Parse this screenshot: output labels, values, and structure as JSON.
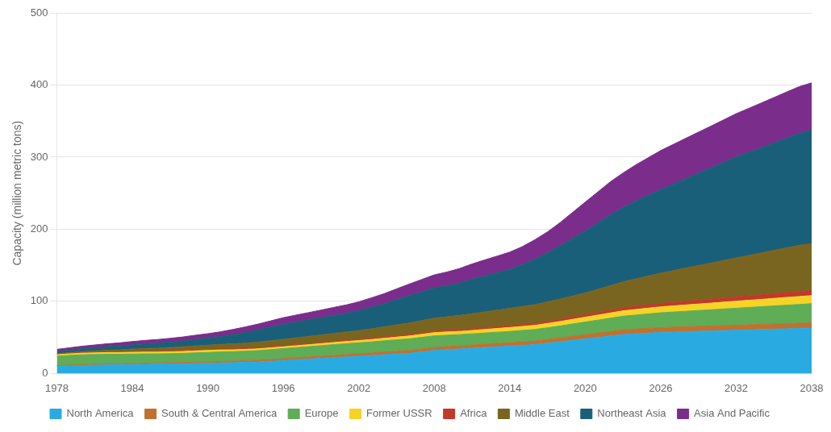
{
  "chart_data": {
    "type": "area",
    "stacked": true,
    "ylabel": "Capacity (million metric tons)",
    "x": [
      1978,
      1979,
      1980,
      1981,
      1982,
      1983,
      1984,
      1985,
      1986,
      1987,
      1988,
      1989,
      1990,
      1991,
      1992,
      1993,
      1994,
      1995,
      1996,
      1997,
      1998,
      1999,
      2000,
      2001,
      2002,
      2003,
      2004,
      2005,
      2006,
      2007,
      2008,
      2009,
      2010,
      2011,
      2012,
      2013,
      2014,
      2015,
      2016,
      2017,
      2018,
      2019,
      2020,
      2021,
      2022,
      2023,
      2024,
      2025,
      2026,
      2027,
      2028,
      2029,
      2030,
      2031,
      2032,
      2033,
      2034,
      2035,
      2036,
      2037,
      2038
    ],
    "series": [
      {
        "name": "North America",
        "color": "#29ABE2",
        "values": [
          10,
          10.5,
          11,
          11.5,
          12,
          12.2,
          12.5,
          12.8,
          13,
          13.2,
          13.5,
          13.8,
          14,
          14.5,
          15,
          15.5,
          16,
          17,
          18,
          19,
          20,
          21,
          22,
          23,
          24,
          25,
          26,
          27,
          28,
          30,
          32,
          33,
          34,
          35,
          36,
          37,
          38,
          39,
          40,
          42,
          44,
          46,
          48,
          50,
          52,
          54,
          55,
          56,
          57,
          57.5,
          58,
          58.5,
          59,
          59.5,
          60,
          60.5,
          61,
          61.5,
          62,
          62.5,
          63
        ]
      },
      {
        "name": "South & Central America",
        "color": "#C1712F",
        "values": [
          1,
          1.1,
          1.2,
          1.3,
          1.4,
          1.45,
          1.5,
          1.6,
          1.7,
          1.8,
          1.9,
          2.0,
          2.1,
          2.2,
          2.3,
          2.4,
          2.5,
          2.6,
          2.7,
          2.9,
          3.0,
          3.1,
          3.2,
          3.3,
          3.5,
          3.6,
          3.8,
          3.9,
          4.0,
          4.1,
          4.2,
          4.3,
          4.4,
          4.5,
          4.6,
          4.7,
          4.8,
          4.9,
          5.0,
          5.2,
          5.4,
          5.6,
          5.8,
          6.0,
          6.2,
          6.4,
          6.5,
          6.6,
          6.7,
          6.75,
          6.8,
          6.85,
          6.9,
          6.95,
          7.0,
          7.05,
          7.1,
          7.15,
          7.2,
          7.25,
          7.3
        ]
      },
      {
        "name": "Europe",
        "color": "#5FAD56",
        "values": [
          13,
          13.5,
          13.8,
          13.5,
          13.2,
          13.0,
          13.0,
          12.8,
          12.5,
          12.5,
          12.5,
          12.8,
          13.0,
          13.2,
          13.0,
          13.0,
          13.2,
          13.5,
          13.8,
          14.0,
          14.2,
          14.5,
          14.8,
          15.0,
          15.0,
          15.2,
          15.5,
          15.8,
          16.0,
          16.0,
          16.0,
          15.8,
          15.5,
          15.5,
          15.5,
          15.5,
          15.5,
          15.8,
          16.0,
          16.2,
          16.5,
          17.0,
          17.5,
          18.0,
          18.5,
          19.0,
          19.5,
          20.0,
          20.5,
          21.0,
          21.5,
          22.0,
          22.5,
          23.0,
          23.5,
          24.0,
          24.5,
          25.0,
          25.5,
          26.0,
          26.5
        ]
      },
      {
        "name": "Former USSR",
        "color": "#F5D327",
        "values": [
          2,
          2.1,
          2.2,
          2.3,
          2.4,
          2.4,
          2.5,
          2.5,
          2.5,
          2.6,
          2.7,
          2.8,
          3.0,
          2.8,
          2.6,
          2.5,
          2.5,
          2.5,
          2.5,
          2.6,
          2.7,
          2.8,
          3.0,
          3.1,
          3.2,
          3.3,
          3.5,
          3.8,
          4.0,
          4.2,
          4.5,
          4.5,
          4.5,
          4.6,
          5.0,
          5.2,
          5.5,
          5.6,
          5.8,
          6.0,
          6.2,
          6.5,
          6.8,
          7.0,
          7.2,
          7.5,
          7.8,
          8.0,
          8.2,
          8.5,
          8.8,
          9.0,
          9.2,
          9.5,
          9.8,
          10.0,
          10.2,
          10.5,
          10.8,
          11.0,
          11.2
        ]
      },
      {
        "name": "Africa",
        "color": "#C0392B",
        "values": [
          0.5,
          0.55,
          0.6,
          0.65,
          0.7,
          0.75,
          0.8,
          0.85,
          0.9,
          0.95,
          1.0,
          1.05,
          1.1,
          1.15,
          1.2,
          1.25,
          1.3,
          1.35,
          1.4,
          1.45,
          1.5,
          1.55,
          1.6,
          1.65,
          1.7,
          1.75,
          1.8,
          1.85,
          1.9,
          1.95,
          2.0,
          2.05,
          2.1,
          2.2,
          2.3,
          2.4,
          2.5,
          2.6,
          2.7,
          2.9,
          3.1,
          3.3,
          3.5,
          3.7,
          3.9,
          4.1,
          4.3,
          4.5,
          4.7,
          4.9,
          5.1,
          5.3,
          5.5,
          5.7,
          5.9,
          6.1,
          6.3,
          6.5,
          6.7,
          6.9,
          7.0
        ]
      },
      {
        "name": "Middle East",
        "color": "#7A6520",
        "values": [
          1,
          1.2,
          1.5,
          2.0,
          2.5,
          3.0,
          3.5,
          4.0,
          4.5,
          5.0,
          5.5,
          5.8,
          6.0,
          6.5,
          7.0,
          7.5,
          8.0,
          8.5,
          9.0,
          9.5,
          10.0,
          10.5,
          11.0,
          11.5,
          12.0,
          13.0,
          14.0,
          15.0,
          16.0,
          17.0,
          18.0,
          19.0,
          20.0,
          21.0,
          22.0,
          23.0,
          24.0,
          25.0,
          26.0,
          27.0,
          28.0,
          29.0,
          30.0,
          32.0,
          34.0,
          36.0,
          38.0,
          40.0,
          42.0,
          44.0,
          46.0,
          48.0,
          50.0,
          52.0,
          54.0,
          56.0,
          58.0,
          60.0,
          62.0,
          64.0,
          65.0
        ]
      },
      {
        "name": "Northeast Asia",
        "color": "#1A5F7A",
        "values": [
          3,
          3.5,
          4,
          4.5,
          5,
          5.5,
          6,
          6.5,
          7,
          7.5,
          8,
          9,
          10,
          11,
          13,
          15,
          17,
          19,
          21,
          22,
          23,
          24,
          25,
          26,
          28,
          30,
          32,
          35,
          38,
          40,
          42,
          43,
          45,
          48,
          50,
          52,
          54,
          58,
          63,
          68,
          74,
          80,
          86,
          92,
          98,
          103,
          108,
          112,
          116,
          120,
          124,
          128,
          132,
          136,
          140,
          143,
          146,
          149,
          152,
          155,
          158
        ]
      },
      {
        "name": "Asia And Pacific",
        "color": "#7B2D8B",
        "values": [
          3,
          3.2,
          3.5,
          3.8,
          4,
          4.2,
          4.5,
          4.8,
          5,
          5.2,
          5.5,
          5.8,
          6,
          6.5,
          7,
          7.5,
          8,
          8.5,
          9,
          9.5,
          10,
          10.5,
          11,
          11.5,
          12,
          13,
          14,
          15,
          16,
          17,
          18,
          19,
          20,
          21,
          22,
          23,
          24,
          25,
          27,
          29,
          32,
          36,
          40,
          43,
          46,
          48,
          50,
          52,
          54,
          55,
          56,
          57,
          58,
          59,
          60,
          61,
          62,
          63,
          64,
          65,
          65
        ]
      }
    ],
    "xlim": [
      1978,
      2038
    ],
    "xticks": [
      1978,
      1984,
      1990,
      1996,
      2002,
      2008,
      2014,
      2020,
      2026,
      2032,
      2038
    ],
    "ylim": [
      0,
      500
    ],
    "yticks": [
      0,
      100,
      200,
      300,
      400,
      500
    ],
    "grid": true,
    "legend": "bottom"
  }
}
